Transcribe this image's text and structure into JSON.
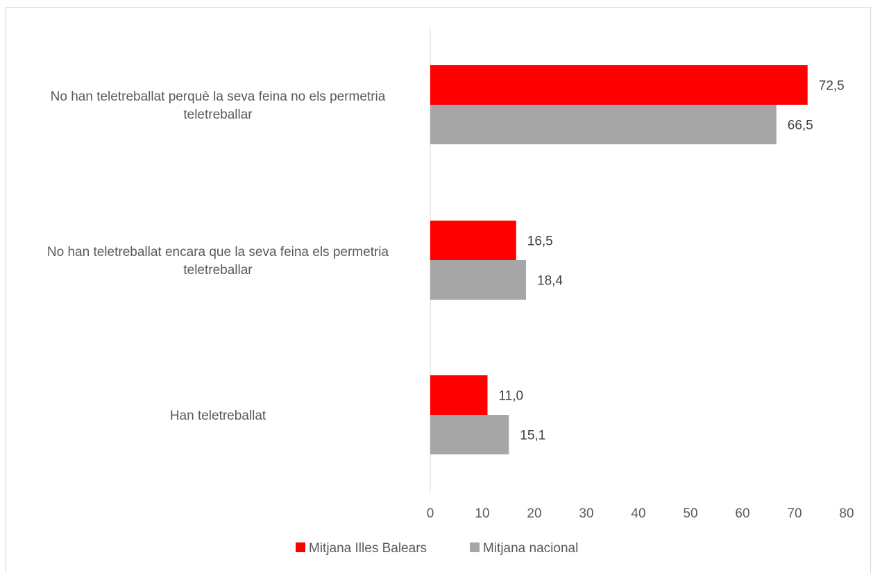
{
  "chart_data": {
    "type": "bar",
    "orientation": "horizontal",
    "categories": [
      "No han teletreballat perquè la seva feina no els permetria teletreballar",
      "No han teletreballat encara que la seva feina els permetria teletreballar",
      "Han teletreballat"
    ],
    "category_lines": [
      [
        "No han teletreballat perquè la seva feina no els permetria",
        "teletreballar"
      ],
      [
        "No han teletreballat encara que la seva feina els permetria",
        "teletreballar"
      ],
      [
        "Han teletreballat"
      ]
    ],
    "series": [
      {
        "name": "Mitjana Illes Balears",
        "color": "#ff0000",
        "values": [
          72.5,
          16.5,
          11.0
        ],
        "labels": [
          "72,5",
          "16,5",
          "11,0"
        ]
      },
      {
        "name": "Mitjana nacional",
        "color": "#a6a6a6",
        "values": [
          66.5,
          18.4,
          15.1
        ],
        "labels": [
          "66,5",
          "18,4",
          "15,1"
        ]
      }
    ],
    "xlim": [
      0,
      80
    ],
    "x_ticks": [
      0,
      10,
      20,
      30,
      40,
      50,
      60,
      70,
      80
    ],
    "grid": false,
    "legend_position": "bottom",
    "title": "",
    "xlabel": "",
    "ylabel": ""
  }
}
